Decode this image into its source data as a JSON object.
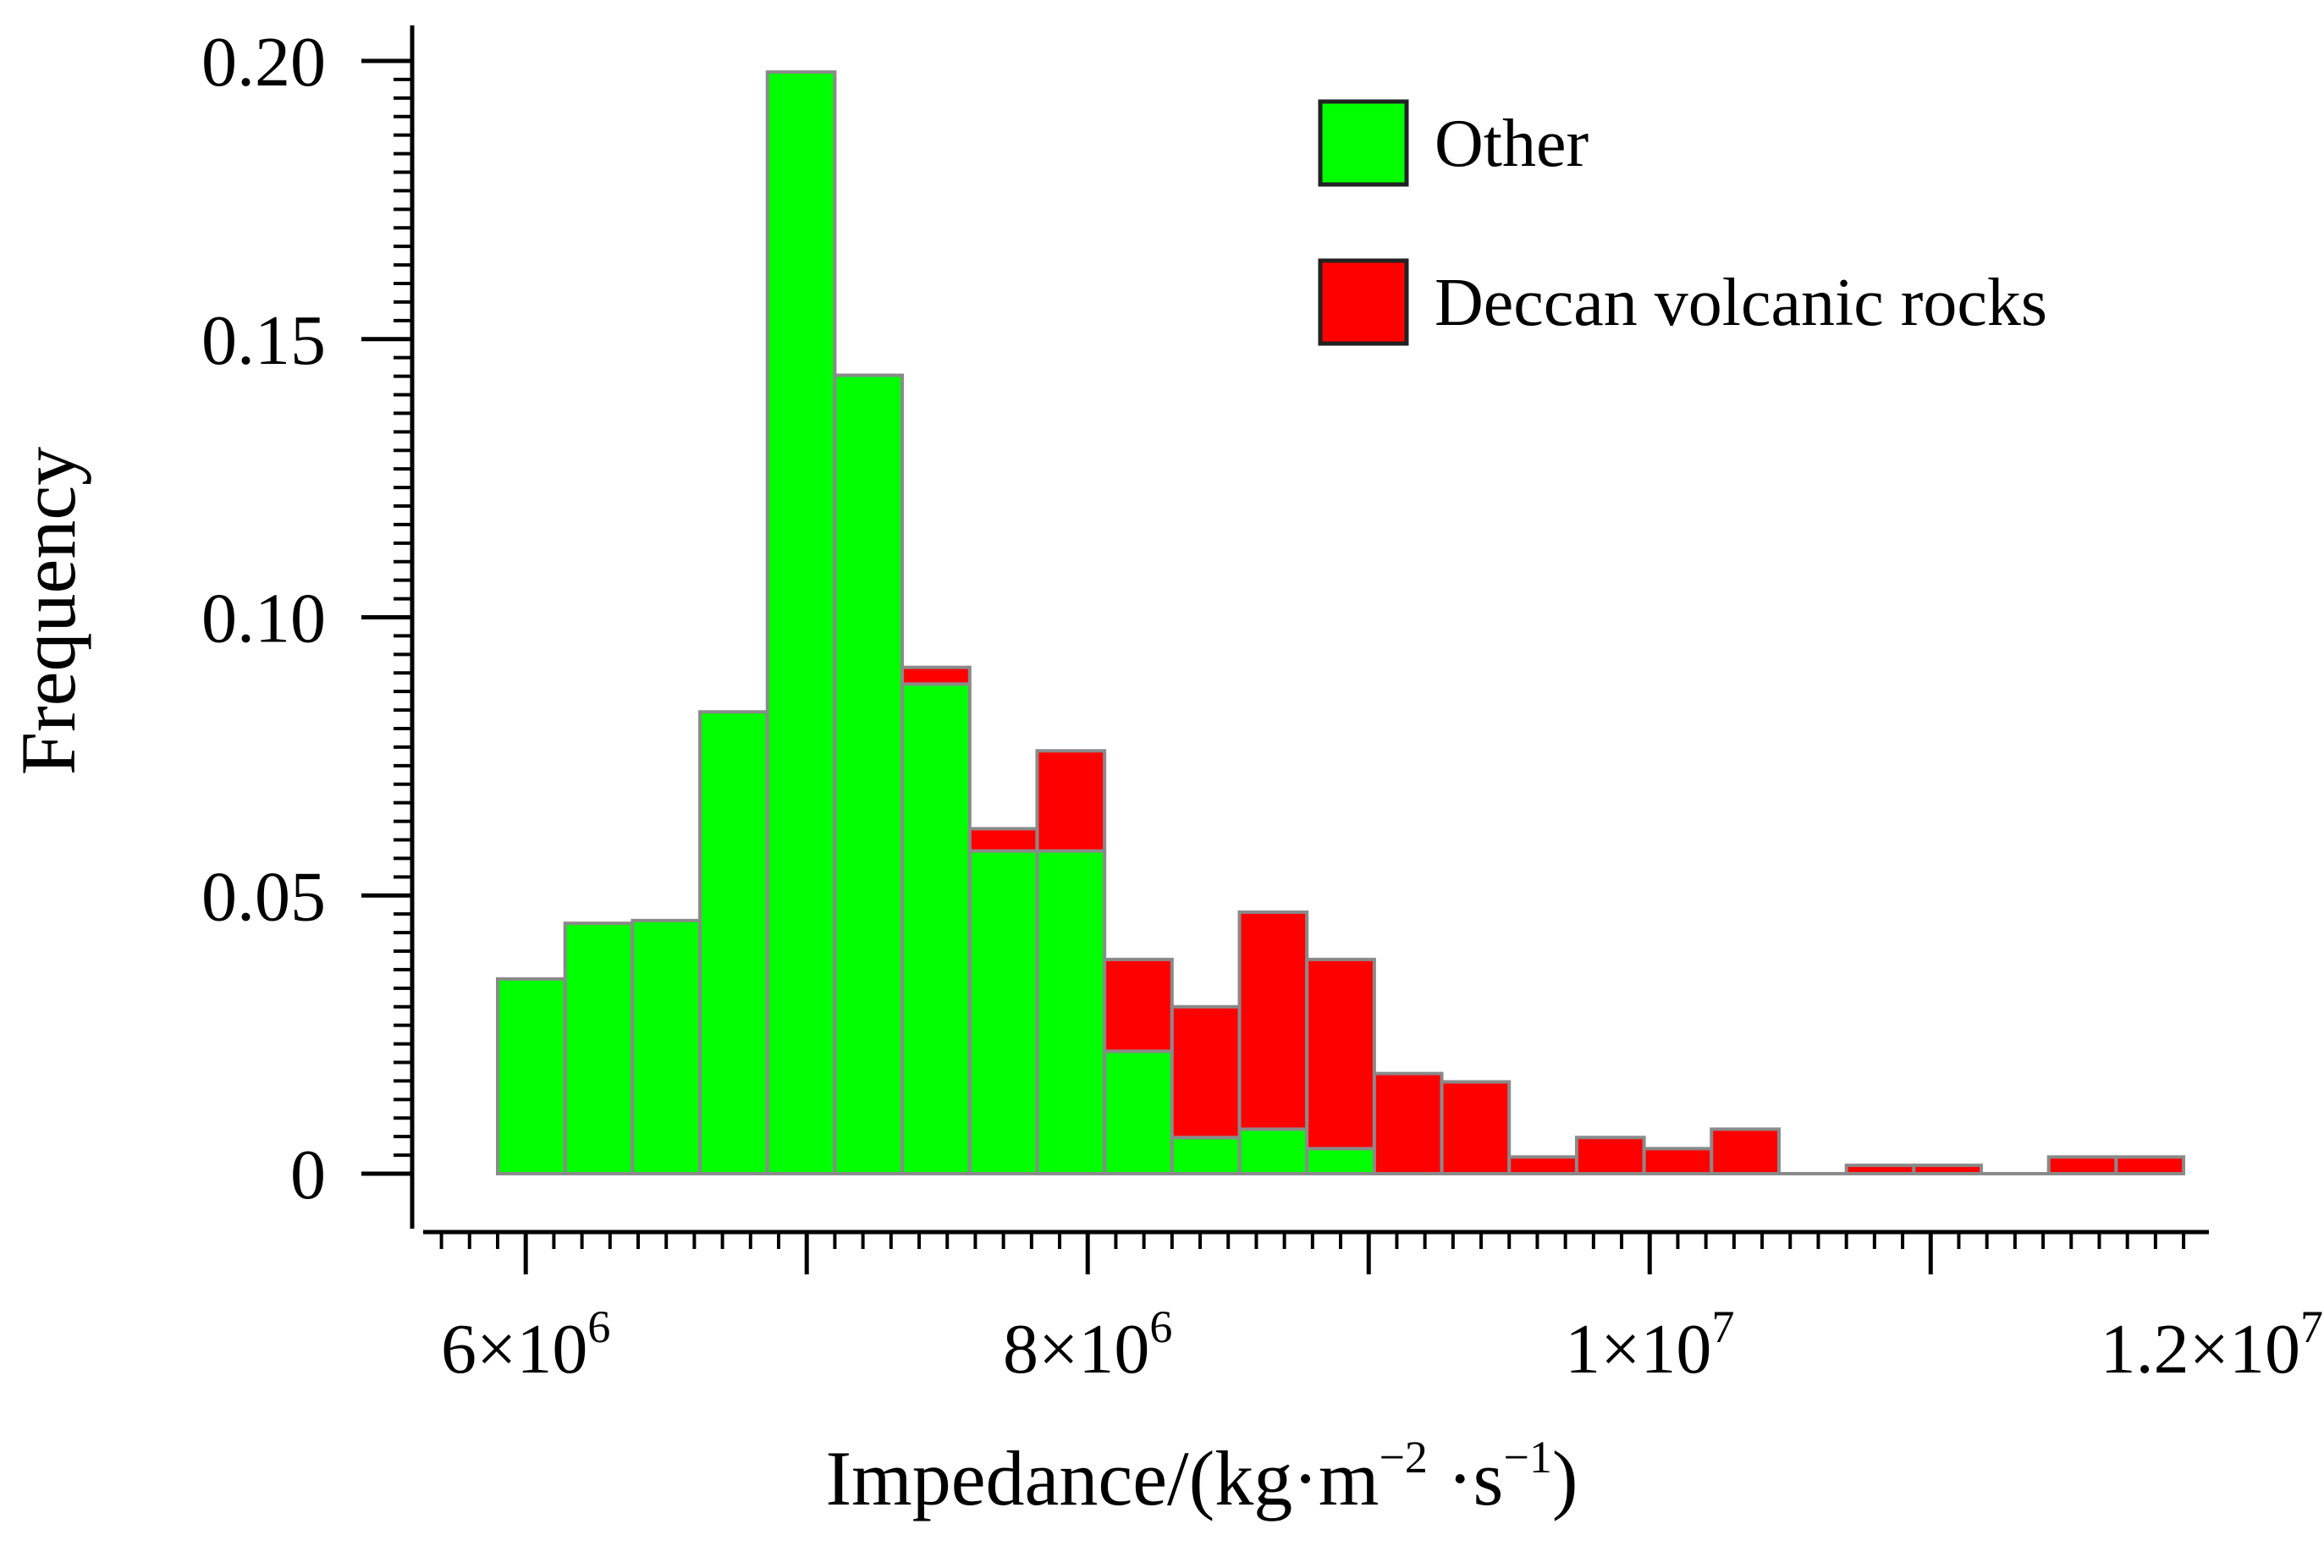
{
  "chart_data": {
    "type": "bar",
    "stacked": true,
    "title": "",
    "xlabel": {
      "base": "Impedance/(kg·m",
      "exp1": "−2",
      "mid": " ·s",
      "exp2": "−1",
      "end": ")"
    },
    "ylabel": "Frequency",
    "xlim": [
      5650000,
      11960000
    ],
    "ylim": [
      0,
      0.2
    ],
    "bin_width": 240000,
    "bin_start": 5900000,
    "x_ticks": [
      {
        "value": 6000000,
        "mantissa": "6",
        "exp": "6"
      },
      {
        "value": 8000000,
        "mantissa": "8",
        "exp": "6"
      },
      {
        "value": 10000000,
        "mantissa": "1",
        "exp": "7"
      },
      {
        "value": 12000000,
        "mantissa": "1.2",
        "exp": "7"
      }
    ],
    "x_tick_times": "×",
    "x_tick_base": "10",
    "y_ticks": [
      {
        "value": 0,
        "label": "0"
      },
      {
        "value": 0.05,
        "label": "0.05"
      },
      {
        "value": 0.1,
        "label": "0.10"
      },
      {
        "value": 0.15,
        "label": "0.15"
      },
      {
        "value": 0.2,
        "label": "0.20"
      }
    ],
    "legend_position": "top-right",
    "series": [
      {
        "name": "Other",
        "color": "#00ff00",
        "values": [
          0.035,
          0.045,
          0.0455,
          0.083,
          0.198,
          0.1435,
          0.088,
          0.058,
          0.058,
          0.022,
          0.0065,
          0.008,
          0.0045,
          0,
          0,
          0,
          0,
          0,
          0,
          0,
          0,
          0,
          0,
          0,
          0
        ]
      },
      {
        "name": "Deccan volcanic rocks",
        "color": "#ff0000",
        "values": [
          0,
          0,
          0,
          0,
          0,
          0,
          0.003,
          0.004,
          0.018,
          0.0165,
          0.0235,
          0.039,
          0.034,
          0.018,
          0.0165,
          0.003,
          0.0065,
          0.0045,
          0.008,
          0,
          0.0015,
          0.0015,
          0,
          0.003,
          0.003
        ]
      }
    ]
  }
}
